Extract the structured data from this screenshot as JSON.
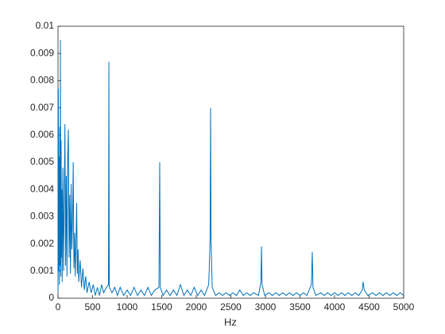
{
  "chart_data": {
    "type": "line",
    "xlabel": "Hz",
    "color": "#0072bd",
    "x": [
      0,
      5,
      10,
      15,
      20,
      25,
      30,
      35,
      40,
      45,
      50,
      55,
      60,
      70,
      80,
      90,
      100,
      110,
      120,
      130,
      140,
      150,
      160,
      170,
      180,
      190,
      200,
      210,
      220,
      230,
      240,
      250,
      260,
      270,
      280,
      290,
      300,
      320,
      340,
      360,
      380,
      400,
      420,
      450,
      480,
      510,
      540,
      570,
      600,
      630,
      660,
      700,
      730,
      736,
      742,
      780,
      820,
      860,
      900,
      950,
      1000,
      1050,
      1100,
      1150,
      1200,
      1250,
      1300,
      1350,
      1400,
      1460,
      1471,
      1480,
      1520,
      1570,
      1620,
      1670,
      1720,
      1770,
      1820,
      1870,
      1920,
      1970,
      2020,
      2070,
      2120,
      2180,
      2200,
      2207,
      2214,
      2230,
      2280,
      2330,
      2380,
      2430,
      2480,
      2530,
      2580,
      2630,
      2680,
      2730,
      2780,
      2830,
      2900,
      2935,
      2943,
      2952,
      2990,
      3050,
      3100,
      3150,
      3200,
      3250,
      3300,
      3350,
      3400,
      3450,
      3500,
      3550,
      3600,
      3665,
      3678,
      3688,
      3730,
      3800,
      3850,
      3900,
      3950,
      4000,
      4050,
      4100,
      4150,
      4200,
      4250,
      4300,
      4350,
      4400,
      4414,
      4430,
      4480,
      4550,
      4600,
      4650,
      4700,
      4750,
      4800,
      4850,
      4900,
      4950,
      5000
    ],
    "values": [
      0.0002,
      0.0077,
      0.001,
      0.0052,
      0.0005,
      0.0063,
      0.0012,
      0.0095,
      0.0008,
      0.0058,
      0.0015,
      0.004,
      0.0006,
      0.0048,
      0.001,
      0.0036,
      0.0064,
      0.0012,
      0.0045,
      0.0008,
      0.0052,
      0.0062,
      0.0015,
      0.0038,
      0.0009,
      0.0042,
      0.0018,
      0.0028,
      0.005,
      0.0011,
      0.0024,
      0.0008,
      0.002,
      0.0035,
      0.0009,
      0.0018,
      0.0006,
      0.0014,
      0.0004,
      0.0011,
      0.0003,
      0.0008,
      0.0002,
      0.0006,
      0.0002,
      0.0005,
      0.0001,
      0.0004,
      0.0001,
      0.0005,
      0.0002,
      0.0004,
      0.0005,
      0.0087,
      0.0004,
      0.0002,
      0.0004,
      0.0001,
      0.0004,
      0.0001,
      0.0003,
      0.0001,
      0.0004,
      0.0001,
      0.0003,
      0.0001,
      0.0004,
      0.0001,
      0.0003,
      0.0004,
      0.005,
      0.0004,
      0.0001,
      0.0003,
      0.0001,
      0.0003,
      0.0001,
      0.0005,
      0.0001,
      0.0003,
      0.0001,
      0.0004,
      0.0001,
      0.0003,
      0.0001,
      0.0005,
      0.0021,
      0.007,
      0.0022,
      0.0004,
      0.0001,
      0.0002,
      0.0001,
      0.0002,
      0.0001,
      0.0002,
      0.0001,
      0.0003,
      0.0001,
      0.0002,
      0.0001,
      0.0002,
      0.0001,
      0.0006,
      0.0019,
      0.0005,
      0.0001,
      0.0002,
      0.0001,
      0.0002,
      0.0001,
      0.0002,
      0.0001,
      0.0002,
      0.0001,
      0.0002,
      0.0001,
      0.0002,
      0.0001,
      0.0005,
      0.0017,
      0.0004,
      0.0001,
      0.0002,
      0.0001,
      0.0002,
      0.0001,
      0.0002,
      0.0001,
      0.0002,
      0.0001,
      0.0002,
      0.0001,
      0.0002,
      0.0001,
      0.0003,
      0.0006,
      0.0003,
      0.0001,
      0.0002,
      0.0001,
      0.0002,
      0.0001,
      0.0002,
      0.0001,
      0.0002,
      0.0001,
      0.0002,
      0.0001
    ],
    "xlim": [
      0,
      5000
    ],
    "xticks": [
      0,
      500,
      1000,
      1500,
      2000,
      2500,
      3000,
      3500,
      4000,
      4500,
      5000
    ],
    "ylim": [
      0,
      0.01
    ],
    "yticks": [
      0,
      0.001,
      0.002,
      0.003,
      0.004,
      0.005,
      0.006,
      0.007,
      0.008,
      0.009,
      0.01
    ]
  }
}
